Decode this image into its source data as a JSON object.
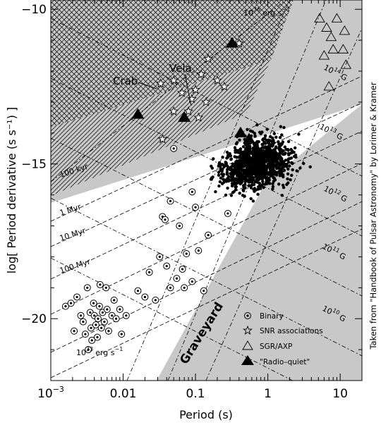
{
  "chart_data": {
    "type": "scatter",
    "xlabel": "Period (s)",
    "ylabel": "log[ Period derivative (s s⁻¹) ]",
    "xscale": "log",
    "xlim": [
      0.001,
      20
    ],
    "ylim": [
      -22,
      -9.7
    ],
    "grid": false,
    "x_ticks": [
      {
        "value": 0.001,
        "base": "10",
        "exp": "−3"
      },
      {
        "value": 0.01,
        "label": "0.01"
      },
      {
        "value": 0.1,
        "label": "0.1"
      },
      {
        "value": 1,
        "label": "1"
      },
      {
        "value": 10,
        "label": "10"
      }
    ],
    "y_ticks": [
      {
        "value": -10,
        "label": "−10"
      },
      {
        "value": -15,
        "label": "−15"
      },
      {
        "value": -20,
        "label": "−20"
      }
    ],
    "annotations": {
      "edot_lines": [
        {
          "base": "10",
          "exp": "36",
          "unit": "erg s",
          "unit_exp": "−1"
        },
        {
          "base": "10",
          "exp": "33",
          "unit": "erg s",
          "unit_exp": "−1"
        }
      ],
      "age_lines": [
        "100 kyr",
        "1 Myr",
        "10 Myr",
        "100 Myr"
      ],
      "field_lines": [
        {
          "base": "10",
          "exp": "14",
          "unit": "G"
        },
        {
          "base": "10",
          "exp": "13",
          "unit": "G"
        },
        {
          "base": "10",
          "exp": "12",
          "unit": "G"
        },
        {
          "base": "10",
          "exp": "11",
          "unit": "G"
        },
        {
          "base": "10",
          "exp": "10",
          "unit": "G"
        }
      ],
      "named": [
        {
          "label": "Crab",
          "x": 0.033,
          "y": -12.4
        },
        {
          "label": "Vela",
          "x": 0.089,
          "y": -12.9
        }
      ],
      "region": "Graveyard"
    },
    "legend": {
      "placement": "bottom-right",
      "entries": [
        {
          "marker": "circled-dot",
          "label": "Binary"
        },
        {
          "marker": "star",
          "label": "SNR associations"
        },
        {
          "marker": "open-triangle",
          "label": "SGR/AXP"
        },
        {
          "marker": "filled-triangle",
          "label": "\"Radio–quiet\""
        }
      ]
    },
    "series": [
      {
        "name": "Binary",
        "marker": "circled-dot",
        "points": [
          [
            0.0016,
            -19.6
          ],
          [
            0.0019,
            -19.5
          ],
          [
            0.0021,
            -20.4
          ],
          [
            0.0023,
            -19.3
          ],
          [
            0.0026,
            -19.9
          ],
          [
            0.0028,
            -20.1
          ],
          [
            0.003,
            -20.5
          ],
          [
            0.0032,
            -19.0
          ],
          [
            0.0033,
            -21.0
          ],
          [
            0.0035,
            -19.8
          ],
          [
            0.0036,
            -20.3
          ],
          [
            0.0037,
            -20.7
          ],
          [
            0.0039,
            -19.5
          ],
          [
            0.004,
            -19.9
          ],
          [
            0.0042,
            -20.2
          ],
          [
            0.0045,
            -20.0
          ],
          [
            0.0047,
            -19.6
          ],
          [
            0.005,
            -20.3
          ],
          [
            0.0052,
            -19.8
          ],
          [
            0.0055,
            -20.1
          ],
          [
            0.006,
            -19.7
          ],
          [
            0.0063,
            -20.4
          ],
          [
            0.007,
            -19.9
          ],
          [
            0.0075,
            -19.4
          ],
          [
            0.008,
            -20.0
          ],
          [
            0.009,
            -19.7
          ],
          [
            0.0095,
            -20.5
          ],
          [
            0.011,
            -19.9
          ],
          [
            0.0048,
            -18.9
          ],
          [
            0.0058,
            -19.0
          ],
          [
            0.016,
            -19.1
          ],
          [
            0.02,
            -19.3
          ],
          [
            0.023,
            -18.5
          ],
          [
            0.028,
            -19.4
          ],
          [
            0.032,
            -18.0
          ],
          [
            0.04,
            -18.3
          ],
          [
            0.045,
            -19.0
          ],
          [
            0.055,
            -18.7
          ],
          [
            0.07,
            -19.0
          ],
          [
            0.09,
            -18.8
          ],
          [
            0.13,
            -19.1
          ],
          [
            0.075,
            -17.9
          ],
          [
            0.11,
            -17.8
          ],
          [
            0.15,
            -17.3
          ],
          [
            0.06,
            -17.0
          ],
          [
            0.1,
            -16.4
          ],
          [
            0.045,
            -16.2
          ],
          [
            0.035,
            -16.7
          ],
          [
            0.05,
            -14.5
          ],
          [
            0.28,
            -16.6
          ],
          [
            0.09,
            -15.9
          ],
          [
            0.066,
            -18.4
          ],
          [
            0.038,
            -16.8
          ],
          [
            0.0044,
            -20.6
          ]
        ]
      },
      {
        "name": "SNR associations",
        "marker": "star",
        "points": [
          [
            0.033,
            -12.4
          ],
          [
            0.05,
            -12.3
          ],
          [
            0.089,
            -12.9
          ],
          [
            0.065,
            -12.7
          ],
          [
            0.1,
            -12.6
          ],
          [
            0.12,
            -12.1
          ],
          [
            0.15,
            -11.6
          ],
          [
            0.2,
            -12.3
          ],
          [
            0.25,
            -12.5
          ],
          [
            0.4,
            -11.1
          ],
          [
            0.14,
            -13.0
          ],
          [
            0.08,
            -13.3
          ],
          [
            0.05,
            -13.3
          ],
          [
            0.035,
            -14.2
          ],
          [
            0.11,
            -13.5
          ]
        ]
      },
      {
        "name": "SGR/AXP",
        "marker": "open-triangle",
        "points": [
          [
            5.2,
            -10.3
          ],
          [
            6.5,
            -10.6
          ],
          [
            7.5,
            -10.9
          ],
          [
            9.0,
            -10.3
          ],
          [
            11.5,
            -10.7
          ],
          [
            8.0,
            -11.3
          ],
          [
            6.0,
            -11.5
          ],
          [
            11.0,
            -11.3
          ],
          [
            7.0,
            -12.5
          ],
          [
            12.0,
            -11.8
          ]
        ]
      },
      {
        "name": "\"Radio–quiet\"",
        "marker": "filled-triangle",
        "points": [
          [
            0.016,
            -13.4
          ],
          [
            0.07,
            -13.5
          ],
          [
            0.32,
            -11.1
          ],
          [
            0.42,
            -14.0
          ],
          [
            0.55,
            -14.2
          ]
        ]
      }
    ]
  },
  "credit_text": "Taken from \"Handbook of Pulsar Astronomy\" by Lorimer & Kramer"
}
